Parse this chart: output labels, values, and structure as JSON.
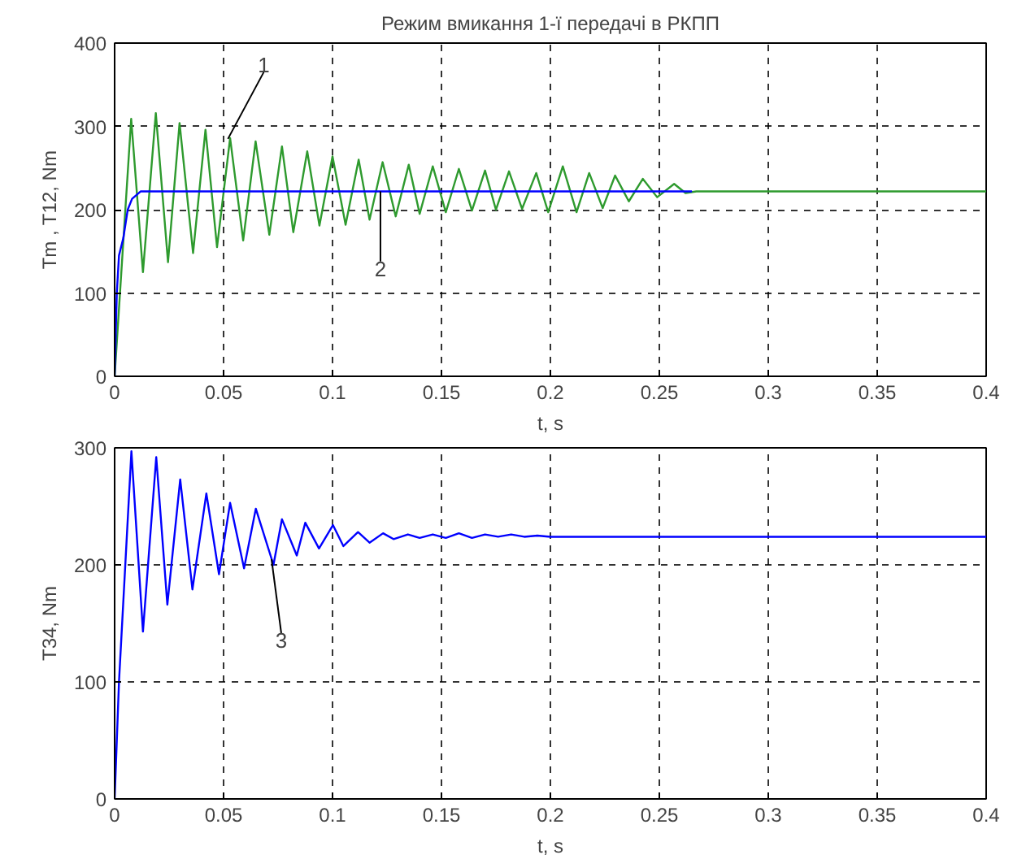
{
  "chart_data": [
    {
      "type": "line",
      "title": "Режим вмикання 1-ї передачі в РКПП",
      "xlabel": "t, s",
      "ylabel": "Tm , T12, Nm",
      "xlim": [
        0,
        0.4
      ],
      "ylim": [
        0,
        400
      ],
      "xticks": [
        0,
        0.05,
        0.1,
        0.15,
        0.2,
        0.25,
        0.3,
        0.35,
        0.4
      ],
      "yticks": [
        0,
        100,
        200,
        300,
        400
      ],
      "grid": true,
      "series": [
        {
          "color": "#2e9a2e",
          "x": [
            0,
            0.0076,
            0.013,
            0.0189,
            0.0245,
            0.0298,
            0.036,
            0.0417,
            0.047,
            0.053,
            0.059,
            0.0647,
            0.071,
            0.0768,
            0.082,
            0.0884,
            0.094,
            0.1,
            0.106,
            0.112,
            0.117,
            0.123,
            0.129,
            0.135,
            0.14,
            0.146,
            0.152,
            0.158,
            0.164,
            0.17,
            0.175,
            0.181,
            0.187,
            0.1935,
            0.199,
            0.2057,
            0.212,
            0.2178,
            0.224,
            0.2297,
            0.236,
            0.2424,
            0.249,
            0.2568,
            0.262,
            0.267,
            0.4
          ],
          "values": [
            0,
            309,
            125,
            316,
            137,
            304,
            148,
            296,
            155,
            286,
            163,
            282,
            170,
            276,
            173,
            270,
            181,
            264,
            182,
            260,
            188,
            257,
            192,
            254,
            195,
            252,
            197,
            249,
            199,
            247,
            200,
            246,
            201,
            244,
            197,
            252,
            197,
            244,
            202,
            241,
            210,
            237,
            215,
            231,
            220,
            222,
            222
          ]
        },
        {
          "color": "#0000ff",
          "x": [
            0,
            0.001,
            0.002,
            0.004,
            0.006,
            0.008,
            0.012,
            0.265
          ],
          "values": [
            0,
            100,
            145,
            166,
            200,
            213,
            222,
            222
          ]
        }
      ],
      "annotations": [
        {
          "text": "1",
          "x": 0.052,
          "y": 285
        },
        {
          "text": "2",
          "x": 0.122,
          "y": 222
        }
      ]
    },
    {
      "type": "line",
      "xlabel": "t, s",
      "ylabel": "T34, Nm",
      "xlim": [
        0,
        0.4
      ],
      "ylim": [
        0,
        300
      ],
      "xticks": [
        0,
        0.05,
        0.1,
        0.15,
        0.2,
        0.25,
        0.3,
        0.35,
        0.4
      ],
      "yticks": [
        0,
        100,
        200,
        300
      ],
      "grid": true,
      "series": [
        {
          "color": "#0000ff",
          "x": [
            0,
            0.002,
            0.0077,
            0.013,
            0.0191,
            0.0242,
            0.0301,
            0.0357,
            0.0421,
            0.0479,
            0.053,
            0.0594,
            0.0648,
            0.0729,
            0.0768,
            0.0836,
            0.0875,
            0.0938,
            0.1002,
            0.105,
            0.1117,
            0.117,
            0.1232,
            0.128,
            0.1346,
            0.14,
            0.146,
            0.152,
            0.158,
            0.164,
            0.17,
            0.176,
            0.182,
            0.188,
            0.194,
            0.2,
            0.25,
            0.4
          ],
          "values": [
            0,
            100,
            297,
            143,
            292,
            166,
            273,
            179,
            261,
            192,
            253,
            197,
            248,
            200,
            239,
            208,
            236,
            214,
            234,
            216,
            228,
            219,
            227,
            222,
            226,
            223,
            226,
            223,
            227,
            223,
            226,
            224,
            226,
            224,
            225,
            224,
            224,
            224
          ]
        }
      ],
      "annotations": [
        {
          "text": "3",
          "x": 0.072,
          "y": 205
        }
      ]
    }
  ]
}
